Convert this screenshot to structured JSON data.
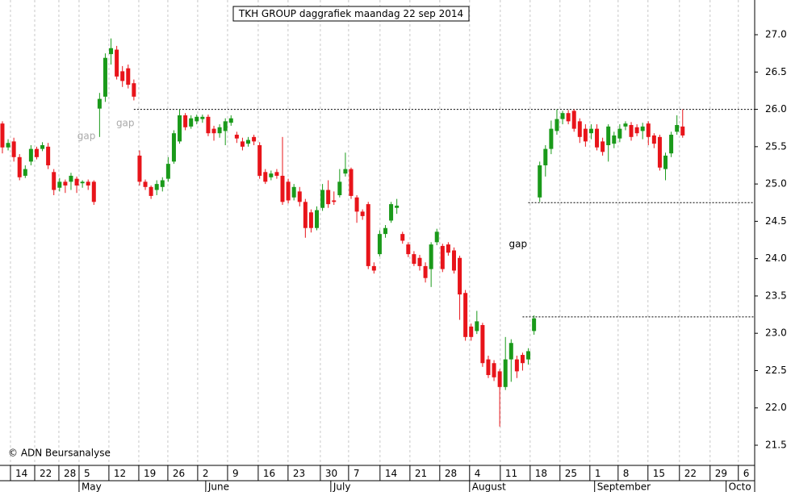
{
  "chart_data": {
    "type": "candlestick",
    "title": "TKH GROUP daggrafiek maandag 22 sep 2014",
    "copyright": "© ADN Beursanalyse",
    "up_color": "#1a9a1a",
    "down_color": "#e8141a",
    "xlim": [
      -2.42,
      129.6
    ],
    "ylim": [
      21.23,
      27.465
    ],
    "yticks": [
      {
        "value": 21.5,
        "label": "21.5"
      },
      {
        "value": 22,
        "label": "22.0"
      },
      {
        "value": 22.5,
        "label": "22.5"
      },
      {
        "value": 23,
        "label": "23.0"
      },
      {
        "value": 23.5,
        "label": "23.5"
      },
      {
        "value": 24,
        "label": "24.0"
      },
      {
        "value": 24.5,
        "label": "24.5"
      },
      {
        "value": 25,
        "label": "25.0"
      },
      {
        "value": 25.5,
        "label": "25.5"
      },
      {
        "value": 26,
        "label": "26.0"
      },
      {
        "value": 26.5,
        "label": "26.5"
      },
      {
        "value": 27,
        "label": "27.0"
      }
    ],
    "xticks": [
      {
        "value": -0.59,
        "label": "14"
      },
      {
        "value": 3.65,
        "label": "22"
      },
      {
        "value": 7.88,
        "label": "28"
      },
      {
        "value": 11.41,
        "label": "5"
      },
      {
        "value": 16.63,
        "label": "12"
      },
      {
        "value": 21.86,
        "label": "19"
      },
      {
        "value": 26.94,
        "label": "26"
      },
      {
        "value": 32.16,
        "label": "2"
      },
      {
        "value": 37.39,
        "label": "9"
      },
      {
        "value": 42.75,
        "label": "16"
      },
      {
        "value": 47.97,
        "label": "23"
      },
      {
        "value": 53.62,
        "label": "30"
      },
      {
        "value": 58.56,
        "label": "7"
      },
      {
        "value": 64.06,
        "label": "14"
      },
      {
        "value": 69.29,
        "label": "21"
      },
      {
        "value": 74.51,
        "label": "28"
      },
      {
        "value": 79.73,
        "label": "4"
      },
      {
        "value": 85.1,
        "label": "11"
      },
      {
        "value": 90.32,
        "label": "18"
      },
      {
        "value": 95.54,
        "label": "25"
      },
      {
        "value": 100.77,
        "label": "1"
      },
      {
        "value": 105.71,
        "label": "8"
      },
      {
        "value": 110.93,
        "label": "15"
      },
      {
        "value": 116.44,
        "label": "22"
      },
      {
        "value": 121.8,
        "label": "29"
      },
      {
        "value": 126.74,
        "label": "6"
      }
    ],
    "months": [
      {
        "value": 11.41,
        "label": "May"
      },
      {
        "value": 33.57,
        "label": "June"
      },
      {
        "value": 55.45,
        "label": "July"
      },
      {
        "value": 79.73,
        "label": "August"
      },
      {
        "value": 101.6,
        "label": "September"
      },
      {
        "value": 124.6,
        "label": "Octo"
      }
    ],
    "grid": true,
    "levels": [
      {
        "value": 26.0,
        "start": 21
      },
      {
        "value": 24.75,
        "start": 90
      },
      {
        "value": 23.22,
        "start": 89
      }
    ],
    "annotations": [
      {
        "text": "gap",
        "x": 12.7,
        "y": 25.64,
        "color": "#aaaaaa"
      },
      {
        "text": "gap",
        "x": 19.5,
        "y": 25.81,
        "color": "#aaaaaa"
      },
      {
        "text": "gap",
        "x": 88.2,
        "y": 24.19,
        "color": "#000000"
      }
    ],
    "x": [
      -2,
      -1,
      0,
      1,
      2,
      3,
      4,
      5,
      6,
      7,
      8,
      9,
      10,
      11,
      12,
      13,
      14,
      15,
      16,
      17,
      18,
      19,
      20,
      21,
      22,
      23,
      24,
      25,
      26,
      27,
      28,
      29,
      30,
      31,
      32,
      33,
      34,
      35,
      36,
      37,
      38,
      39,
      40,
      41,
      42,
      43,
      44,
      45,
      46,
      47,
      48,
      49,
      50,
      51,
      52,
      53,
      54,
      55,
      56,
      57,
      58,
      59,
      60,
      61,
      62,
      63,
      64,
      65,
      66,
      67,
      68,
      69,
      70,
      71,
      72,
      73,
      74,
      75,
      76,
      77,
      78,
      79,
      80,
      81,
      82,
      83,
      84,
      85,
      86,
      87,
      88,
      89,
      90,
      91,
      92,
      93,
      94,
      95,
      96,
      97,
      98,
      99,
      100,
      101,
      102,
      103,
      104,
      105,
      106,
      107,
      108,
      109,
      110,
      111,
      112,
      113,
      114,
      115,
      116,
      117
    ],
    "open": [
      25.81,
      25.49,
      25.57,
      25.36,
      25.11,
      25.3,
      25.47,
      25.47,
      25.5,
      25.16,
      24.95,
      25.03,
      25.03,
      25.07,
      25.01,
      25.03,
      25.03,
      26.01,
      26.17,
      26.74,
      26.8,
      26.51,
      26.55,
      26.35,
      25.38,
      25.03,
      24.96,
      24.92,
      24.96,
      25.07,
      25.3,
      25.57,
      25.92,
      25.77,
      25.84,
      25.87,
      25.9,
      25.74,
      25.68,
      25.71,
      25.82,
      25.66,
      25.57,
      25.54,
      25.63,
      25.52,
      25.16,
      25.09,
      25.16,
      25.11,
      25.03,
      24.82,
      24.9,
      24.76,
      24.62,
      24.41,
      24.68,
      24.92,
      24.78,
      24.85,
      25.14,
      25.2,
      24.82,
      24.63,
      24.73,
      23.9,
      24.06,
      24.33,
      24.51,
      24.68,
      24.33,
      24.19,
      24.06,
      24.01,
      23.9,
      23.86,
      24.22,
      24.17,
      24.19,
      24.11,
      24.01,
      23.54,
      23.09,
      23.03,
      23.11,
      22.65,
      22.6,
      22.49,
      22.28,
      22.65,
      22.65,
      22.71,
      22.65,
      23.03,
      24.82,
      25.25,
      25.47,
      25.71,
      25.87,
      25.95,
      25.98,
      25.84,
      25.74,
      25.68,
      25.74,
      25.57,
      25.52,
      25.54,
      25.61,
      25.77,
      25.79,
      25.76,
      25.71,
      25.81,
      25.65,
      25.63,
      25.2,
      25.41,
      25.7,
      25.77
    ],
    "high": [
      25.84,
      25.6,
      25.62,
      25.4,
      25.25,
      25.52,
      25.5,
      25.56,
      25.55,
      25.2,
      25.08,
      25.06,
      25.15,
      25.1,
      25.05,
      25.06,
      25.05,
      26.22,
      26.75,
      26.95,
      26.85,
      26.58,
      26.6,
      26.4,
      25.45,
      25.06,
      24.98,
      25.05,
      25.09,
      25.36,
      25.72,
      26.0,
      25.95,
      25.92,
      25.93,
      25.93,
      25.93,
      25.78,
      25.8,
      25.88,
      25.92,
      25.7,
      25.62,
      25.63,
      25.66,
      25.56,
      25.2,
      25.18,
      25.2,
      25.63,
      25.07,
      25.0,
      24.96,
      24.8,
      24.66,
      24.7,
      25.0,
      25.05,
      24.9,
      25.2,
      25.42,
      25.22,
      24.85,
      24.66,
      24.76,
      23.95,
      24.38,
      24.45,
      24.76,
      24.8,
      24.36,
      24.22,
      24.1,
      24.05,
      23.95,
      24.22,
      24.4,
      24.2,
      24.22,
      24.15,
      24.04,
      23.58,
      23.13,
      23.3,
      23.14,
      22.7,
      22.64,
      22.52,
      22.95,
      22.92,
      22.7,
      22.74,
      22.8,
      23.24,
      25.3,
      25.52,
      25.85,
      26.0,
      25.98,
      25.99,
      26.0,
      25.88,
      25.8,
      25.8,
      25.8,
      25.62,
      25.8,
      25.7,
      25.8,
      25.84,
      25.83,
      25.8,
      25.82,
      25.84,
      25.68,
      25.66,
      25.42,
      25.7,
      25.92,
      26.0
    ],
    "low": [
      25.41,
      25.45,
      25.3,
      25.05,
      25.08,
      25.25,
      25.33,
      25.44,
      25.2,
      24.85,
      24.9,
      24.88,
      24.92,
      24.88,
      24.95,
      24.92,
      24.72,
      25.63,
      26.1,
      26.6,
      26.4,
      26.3,
      26.28,
      26.12,
      24.98,
      24.92,
      24.8,
      24.85,
      24.9,
      25.03,
      25.27,
      25.54,
      25.72,
      25.74,
      25.8,
      25.82,
      25.64,
      25.58,
      25.62,
      25.52,
      25.78,
      25.55,
      25.45,
      25.5,
      25.52,
      25.07,
      25.0,
      25.05,
      25.07,
      24.72,
      24.74,
      24.78,
      24.7,
      24.28,
      24.35,
      24.38,
      24.64,
      24.68,
      24.72,
      24.82,
      25.1,
      24.8,
      24.48,
      24.52,
      23.86,
      23.8,
      24.03,
      24.28,
      24.48,
      24.6,
      24.2,
      24.02,
      23.9,
      23.84,
      23.68,
      23.62,
      24.18,
      23.82,
      24.04,
      23.8,
      23.18,
      22.9,
      22.9,
      22.99,
      22.55,
      22.4,
      22.36,
      21.75,
      22.24,
      22.35,
      22.4,
      22.5,
      22.58,
      22.98,
      24.76,
      25.1,
      25.4,
      25.66,
      25.8,
      25.8,
      25.7,
      25.55,
      25.5,
      25.6,
      25.45,
      25.38,
      25.3,
      25.48,
      25.56,
      25.72,
      25.58,
      25.64,
      25.6,
      25.52,
      25.48,
      25.18,
      25.05,
      25.36,
      25.66,
      25.62
    ],
    "close": [
      25.49,
      25.55,
      25.36,
      25.09,
      25.2,
      25.47,
      25.36,
      25.52,
      25.25,
      24.92,
      25.03,
      24.98,
      25.11,
      24.98,
      25.03,
      24.98,
      24.76,
      26.14,
      26.69,
      26.82,
      26.44,
      26.38,
      26.33,
      26.17,
      25.03,
      24.96,
      24.84,
      25.0,
      25.05,
      25.27,
      25.68,
      25.92,
      25.76,
      25.88,
      25.9,
      25.9,
      25.68,
      25.68,
      25.76,
      25.84,
      25.88,
      25.61,
      25.5,
      25.59,
      25.57,
      25.11,
      25.03,
      25.14,
      25.11,
      24.76,
      24.78,
      24.96,
      24.76,
      24.41,
      24.41,
      24.65,
      24.92,
      24.73,
      24.76,
      25.03,
      25.2,
      24.84,
      24.63,
      24.57,
      23.9,
      23.84,
      24.33,
      24.41,
      24.73,
      24.71,
      24.24,
      24.06,
      23.93,
      23.9,
      23.74,
      24.19,
      24.36,
      23.86,
      24.08,
      23.84,
      23.52,
      22.95,
      22.95,
      23.16,
      22.6,
      22.44,
      22.41,
      22.28,
      22.65,
      22.87,
      22.49,
      22.6,
      22.76,
      23.2,
      25.25,
      25.47,
      25.74,
      25.87,
      25.95,
      25.84,
      25.74,
      25.63,
      25.57,
      25.74,
      25.49,
      25.43,
      25.77,
      25.65,
      25.74,
      25.81,
      25.63,
      25.68,
      25.77,
      25.63,
      25.54,
      25.22,
      25.38,
      25.66,
      25.79,
      25.65
    ]
  }
}
